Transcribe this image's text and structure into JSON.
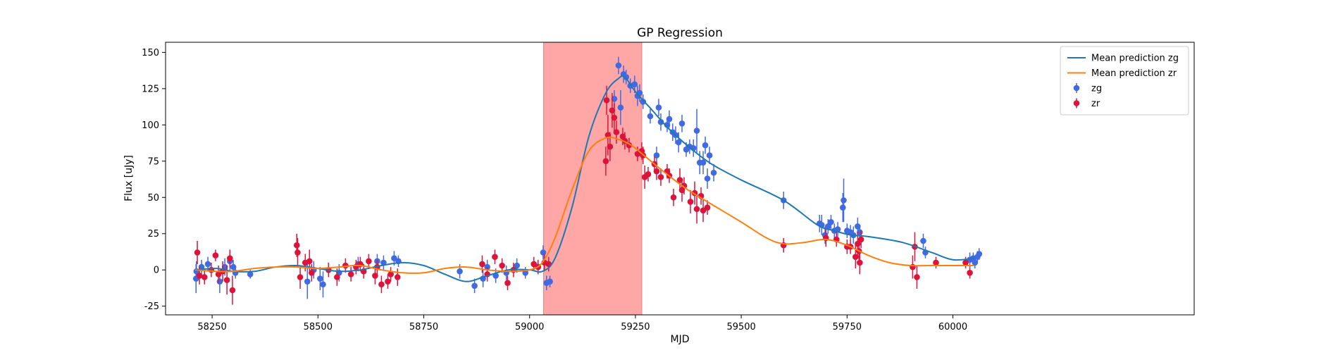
{
  "chart_data": {
    "type": "scatter",
    "title": "GP Regression",
    "xlabel": "MJD",
    "ylabel": "Flux [uJy]",
    "xlim": [
      58140,
      60570
    ],
    "ylim": [
      -31,
      157
    ],
    "xticks": [
      58250,
      58500,
      58750,
      59000,
      59250,
      59500,
      59750,
      60000
    ],
    "yticks": [
      -25,
      0,
      25,
      50,
      75,
      100,
      125,
      150
    ],
    "grid": false,
    "legend_position": "upper right",
    "highlight_region": {
      "x": [
        59033,
        59265
      ],
      "color": "#ffa6a6"
    },
    "series": [
      {
        "name": "Mean prediction zg",
        "kind": "line",
        "color": "#1f77b4",
        "x": [
          58210,
          58260,
          58300,
          58350,
          58400,
          58450,
          58500,
          58550,
          58600,
          58650,
          58700,
          58750,
          58800,
          58850,
          58900,
          58950,
          59000,
          59030,
          59060,
          59100,
          59140,
          59180,
          59210,
          59225,
          59250,
          59290,
          59330,
          59380,
          59430,
          59500,
          59600,
          59680,
          59720,
          59760,
          59800,
          59880,
          59950,
          60000,
          60050
        ],
        "y": [
          0,
          1,
          -1,
          -1,
          2,
          3,
          1,
          -1,
          0,
          3,
          5,
          3,
          -3,
          -8,
          -4,
          0,
          0,
          -1,
          8,
          43,
          92,
          122,
          132,
          133,
          123,
          110,
          97,
          84,
          73,
          62,
          48,
          31,
          27,
          24,
          23,
          19,
          12,
          7,
          8
        ]
      },
      {
        "name": "Mean prediction zr",
        "kind": "line",
        "color": "#ff7f0e",
        "x": [
          58210,
          58260,
          58300,
          58350,
          58400,
          58450,
          58500,
          58550,
          58600,
          58650,
          58700,
          58750,
          58800,
          58850,
          58900,
          58950,
          59000,
          59030,
          59060,
          59100,
          59140,
          59180,
          59210,
          59240,
          59270,
          59320,
          59370,
          59420,
          59500,
          59560,
          59600,
          59650,
          59700,
          59750,
          59800,
          59850,
          59900,
          59950,
          60000,
          60050
        ],
        "y": [
          0,
          -1,
          -1,
          1,
          2,
          2,
          1,
          2,
          3,
          0,
          -2,
          -2,
          1,
          2,
          0,
          -1,
          0,
          5,
          22,
          55,
          82,
          91,
          90,
          86,
          79,
          67,
          56,
          47,
          33,
          22,
          18,
          19,
          21,
          17,
          10,
          5,
          3,
          3,
          3,
          3
        ]
      },
      {
        "name": "zg",
        "kind": "errorbar",
        "color": "#4169e1",
        "points": [
          [
            58212,
            -6,
            10
          ],
          [
            58213,
            -1,
            7
          ],
          [
            58225,
            2,
            5
          ],
          [
            58240,
            4,
            5
          ],
          [
            58268,
            -8,
            8
          ],
          [
            58280,
            2,
            6
          ],
          [
            58292,
            6,
            7
          ],
          [
            58300,
            2,
            5
          ],
          [
            58305,
            -2,
            4
          ],
          [
            58340,
            -3,
            3
          ],
          [
            58475,
            -8,
            12
          ],
          [
            58490,
            0,
            6
          ],
          [
            58505,
            -6,
            8
          ],
          [
            58512,
            -10,
            9
          ],
          [
            58550,
            -2,
            6
          ],
          [
            58595,
            4,
            5
          ],
          [
            58640,
            6,
            5
          ],
          [
            58655,
            5,
            5
          ],
          [
            58680,
            8,
            5
          ],
          [
            58690,
            6,
            4
          ],
          [
            58835,
            -1,
            5
          ],
          [
            58870,
            -11,
            5
          ],
          [
            58890,
            -6,
            6
          ],
          [
            58900,
            2,
            5
          ],
          [
            58920,
            -4,
            5
          ],
          [
            58945,
            -2,
            5
          ],
          [
            58970,
            3,
            5
          ],
          [
            58990,
            -2,
            4
          ],
          [
            59020,
            2,
            4
          ],
          [
            59032,
            12,
            5
          ],
          [
            59040,
            -9,
            5
          ],
          [
            59048,
            -8,
            4
          ],
          [
            59200,
            118,
            6
          ],
          [
            59210,
            141,
            6
          ],
          [
            59215,
            112,
            12
          ],
          [
            59222,
            135,
            6
          ],
          [
            59228,
            133,
            5
          ],
          [
            59238,
            127,
            5
          ],
          [
            59248,
            128,
            6
          ],
          [
            59255,
            120,
            7
          ],
          [
            59260,
            122,
            6
          ],
          [
            59268,
            116,
            5
          ],
          [
            59285,
            106,
            5
          ],
          [
            59300,
            79,
            6
          ],
          [
            59305,
            112,
            6
          ],
          [
            59310,
            102,
            6
          ],
          [
            59325,
            100,
            5
          ],
          [
            59330,
            104,
            6
          ],
          [
            59338,
            95,
            6
          ],
          [
            59345,
            93,
            6
          ],
          [
            59352,
            88,
            7
          ],
          [
            59360,
            101,
            6
          ],
          [
            59370,
            83,
            5
          ],
          [
            59378,
            85,
            5
          ],
          [
            59387,
            84,
            6
          ],
          [
            59395,
            96,
            15
          ],
          [
            59402,
            74,
            8
          ],
          [
            59410,
            74,
            8
          ],
          [
            59415,
            86,
            6
          ],
          [
            59420,
            63,
            7
          ],
          [
            59425,
            79,
            6
          ],
          [
            59435,
            67,
            6
          ],
          [
            59600,
            48,
            6
          ],
          [
            59685,
            32,
            6
          ],
          [
            59690,
            31,
            7
          ],
          [
            59698,
            24,
            6
          ],
          [
            59705,
            30,
            5
          ],
          [
            59712,
            33,
            5
          ],
          [
            59720,
            27,
            5
          ],
          [
            59728,
            28,
            5
          ],
          [
            59740,
            43,
            10
          ],
          [
            59742,
            48,
            15
          ],
          [
            59750,
            27,
            5
          ],
          [
            59758,
            26,
            5
          ],
          [
            59765,
            24,
            6
          ],
          [
            59775,
            30,
            6
          ],
          [
            59780,
            26,
            5
          ],
          [
            59930,
            20,
            5
          ],
          [
            59935,
            12,
            4
          ],
          [
            60040,
            7,
            5
          ],
          [
            60048,
            8,
            4
          ],
          [
            60052,
            5,
            4
          ],
          [
            60058,
            9,
            4
          ],
          [
            60062,
            11,
            4
          ]
        ]
      },
      {
        "name": "zr",
        "kind": "errorbar",
        "color": "#dc143c",
        "points": [
          [
            58215,
            12,
            8
          ],
          [
            58220,
            -4,
            6
          ],
          [
            58232,
            -5,
            5
          ],
          [
            58248,
            0,
            5
          ],
          [
            58258,
            10,
            4
          ],
          [
            58265,
            -3,
            6
          ],
          [
            58275,
            -1,
            7
          ],
          [
            58285,
            -7,
            10
          ],
          [
            58292,
            8,
            6
          ],
          [
            58298,
            -14,
            10
          ],
          [
            58450,
            17,
            8
          ],
          [
            58452,
            12,
            10
          ],
          [
            58458,
            -5,
            8
          ],
          [
            58470,
            5,
            6
          ],
          [
            58480,
            6,
            8
          ],
          [
            58485,
            -2,
            6
          ],
          [
            58525,
            0,
            5
          ],
          [
            58545,
            -5,
            6
          ],
          [
            58565,
            3,
            5
          ],
          [
            58578,
            -3,
            5
          ],
          [
            58590,
            2,
            5
          ],
          [
            58600,
            4,
            5
          ],
          [
            58608,
            -1,
            5
          ],
          [
            58620,
            6,
            5
          ],
          [
            58635,
            -4,
            6
          ],
          [
            58640,
            2,
            5
          ],
          [
            58650,
            -10,
            6
          ],
          [
            58665,
            -8,
            5
          ],
          [
            58672,
            -3,
            5
          ],
          [
            58688,
            -5,
            6
          ],
          [
            58888,
            4,
            6
          ],
          [
            58900,
            -3,
            5
          ],
          [
            58918,
            9,
            5
          ],
          [
            58935,
            3,
            5
          ],
          [
            58948,
            -9,
            5
          ],
          [
            58962,
            0,
            5
          ],
          [
            59010,
            4,
            5
          ],
          [
            59020,
            2,
            5
          ],
          [
            59035,
            5,
            6
          ],
          [
            59045,
            4,
            5
          ],
          [
            59180,
            75,
            10
          ],
          [
            59182,
            117,
            10
          ],
          [
            59185,
            93,
            14
          ],
          [
            59190,
            85,
            10
          ],
          [
            59195,
            110,
            12
          ],
          [
            59200,
            105,
            10
          ],
          [
            59205,
            95,
            8
          ],
          [
            59220,
            92,
            6
          ],
          [
            59225,
            89,
            6
          ],
          [
            59235,
            86,
            5
          ],
          [
            59255,
            80,
            5
          ],
          [
            59265,
            82,
            6
          ],
          [
            59268,
            79,
            6
          ],
          [
            59272,
            64,
            8
          ],
          [
            59280,
            66,
            5
          ],
          [
            59295,
            73,
            5
          ],
          [
            59300,
            68,
            6
          ],
          [
            59310,
            64,
            6
          ],
          [
            59325,
            68,
            5
          ],
          [
            59330,
            65,
            5
          ],
          [
            59340,
            50,
            6
          ],
          [
            59355,
            62,
            8
          ],
          [
            59360,
            55,
            8
          ],
          [
            59365,
            58,
            6
          ],
          [
            59380,
            47,
            8
          ],
          [
            59390,
            53,
            8
          ],
          [
            59395,
            42,
            10
          ],
          [
            59405,
            51,
            6
          ],
          [
            59410,
            41,
            8
          ],
          [
            59420,
            43,
            5
          ],
          [
            59600,
            17,
            5
          ],
          [
            59700,
            22,
            6
          ],
          [
            59725,
            21,
            5
          ],
          [
            59750,
            16,
            5
          ],
          [
            59758,
            16,
            5
          ],
          [
            59770,
            9,
            8
          ],
          [
            59775,
            18,
            8
          ],
          [
            59778,
            13,
            6
          ],
          [
            59780,
            5,
            8
          ],
          [
            59783,
            21,
            6
          ],
          [
            59905,
            2,
            8
          ],
          [
            59910,
            16,
            10
          ],
          [
            59915,
            -5,
            8
          ],
          [
            59960,
            5,
            4
          ],
          [
            60030,
            5,
            4
          ],
          [
            60040,
            -2,
            4
          ]
        ]
      }
    ]
  }
}
